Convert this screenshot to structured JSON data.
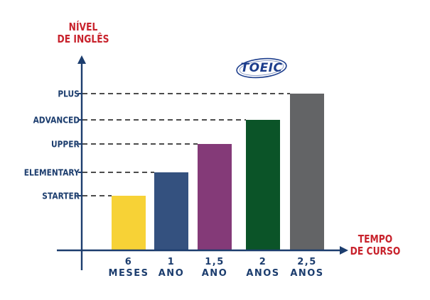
{
  "chart_data": {
    "type": "bar",
    "ylabel": "NÍVEL\nDE INGLÊS",
    "xlabel": "TEMPO\nDE CURSO",
    "levels": [
      "STARTER",
      "ELEMENTARY",
      "UPPER",
      "ADVANCED",
      "PLUS"
    ],
    "categories": [
      "6\nMESES",
      "1\nANO",
      "1,5\nANO",
      "2\nANOS",
      "2,5\nANOS"
    ],
    "values": [
      1,
      2,
      3,
      4,
      5
    ],
    "value_labels": [
      "STARTER",
      "ELEMENTARY",
      "UPPER",
      "ADVANCED",
      "PLUS"
    ],
    "colors": [
      "#f7d236",
      "#34517f",
      "#843a78",
      "#0b5428",
      "#636466"
    ],
    "ylim": [
      0,
      5
    ],
    "grid": false,
    "reference_lines": "dashed, from each level label to the top of its bar"
  },
  "logo": {
    "text": "TOEIC"
  },
  "colors": {
    "axis": "#1c3d6e",
    "title": "#c8222c"
  }
}
